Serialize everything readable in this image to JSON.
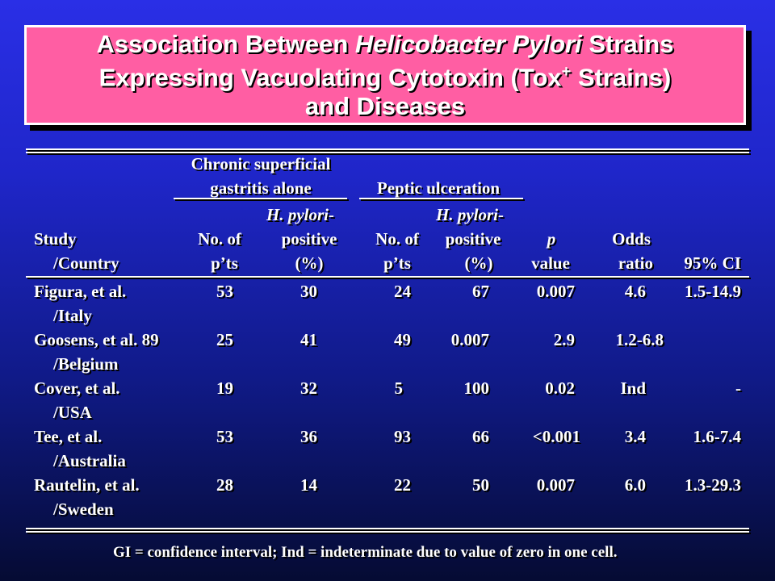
{
  "title": {
    "part1": "Association Between ",
    "part2_italic": "Helicobacter Pylori",
    "part3": " Strains",
    "line2a": "Expressing Vacuolating Cytotoxin (Tox",
    "sup": "+",
    "line2b": " Strains)",
    "line3": "and Diseases"
  },
  "groups": {
    "gastritis_l1": "Chronic superficial",
    "gastritis_l2": "gastritis alone",
    "ulcer": "Peptic ulceration"
  },
  "headers": {
    "study_l1": "Study",
    "study_l2": "/Country",
    "no_l1": "No. of",
    "no_l2": "p’ts",
    "hp_l1": "H. pylori-",
    "hp_l2": "positive",
    "hp_l3": "(%)",
    "p_l1": "p",
    "p_l2": "value",
    "odds_l1": "Odds",
    "odds_l2": "ratio",
    "ci": "95% CI"
  },
  "rows": [
    {
      "study": "Figura, et al.",
      "country": "/Italy",
      "c1": "53",
      "c2": "30",
      "c3": "24",
      "c4": "67",
      "c5": "0.007",
      "c6": "4.6",
      "c7": "1.5-14.9"
    },
    {
      "study": "Goosens, et al. 89",
      "country": "/Belgium",
      "c1": "25",
      "c2": "41",
      "c3": "49",
      "c4": "0.007",
      "c5": "2.9",
      "c6": "1.2-6.8",
      "c7": ""
    },
    {
      "study": "Cover, et al.",
      "country": "/USA",
      "c1": "19",
      "c2": "32",
      "c3": "5",
      "c4": "100",
      "c5": "0.02",
      "c6": "Ind",
      "c7": "-"
    },
    {
      "study": "Tee, et al.",
      "country": "/Australia",
      "c1": "53",
      "c2": "36",
      "c3": "93",
      "c4": "66",
      "c5": "<0.001",
      "c6": "3.4",
      "c7": "1.6-7.4"
    },
    {
      "study": "Rautelin, et al.",
      "country": "/Sweden",
      "c1": "28",
      "c2": "14",
      "c3": "22",
      "c4": "50",
      "c5": "0.007",
      "c6": "6.0",
      "c7": "1.3-29.3"
    }
  ],
  "footnote": "GI  = confidence interval; Ind = indeterminate due to value of zero in one cell."
}
